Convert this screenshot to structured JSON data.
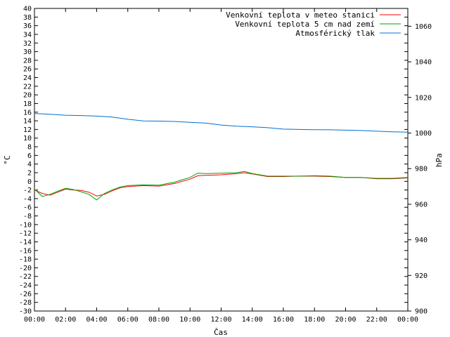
{
  "chart_data": {
    "type": "line",
    "xlabel": "Čas",
    "ylabel": "°C",
    "y2label": "hPa",
    "x_ticks": [
      "00:00",
      "02:00",
      "04:00",
      "06:00",
      "08:00",
      "10:00",
      "12:00",
      "14:00",
      "16:00",
      "18:00",
      "20:00",
      "22:00",
      "00:00"
    ],
    "xlim": [
      0,
      24
    ],
    "ylim": [
      -30,
      40
    ],
    "ytick_step": 2,
    "y2lim": [
      900,
      1070
    ],
    "y2tick_step": 20,
    "grid": false,
    "legend_position": "top-right",
    "series": [
      {
        "name": "Venkovní teplota v meteo stanici",
        "axis": "left",
        "color": "#ff0000",
        "x": [
          0,
          0.5,
          1,
          1.5,
          2,
          2.5,
          3,
          3.5,
          4,
          4.5,
          5,
          5.5,
          6,
          7,
          8,
          9,
          10,
          10.5,
          11,
          12,
          13,
          13.5,
          14,
          15,
          16,
          17,
          18,
          19,
          20,
          21,
          22,
          23,
          24
        ],
        "y": [
          -2.0,
          -2.8,
          -3.2,
          -2.5,
          -1.8,
          -2.0,
          -2.1,
          -2.5,
          -3.4,
          -3.0,
          -2.2,
          -1.5,
          -1.2,
          -1.0,
          -1.1,
          -0.5,
          0.5,
          1.3,
          1.4,
          1.5,
          1.8,
          2.0,
          1.7,
          1.1,
          1.1,
          1.2,
          1.2,
          1.1,
          0.9,
          0.9,
          0.6,
          0.6,
          0.8
        ]
      },
      {
        "name": "Venkovní teplota 5 cm nad zemí",
        "axis": "left",
        "color": "#00a000",
        "x": [
          0,
          0.5,
          1,
          1.5,
          2,
          2.5,
          3,
          3.5,
          4,
          4.5,
          5,
          5.5,
          6,
          7,
          8,
          9,
          10,
          10.5,
          11,
          12,
          13,
          13.5,
          14,
          15,
          16,
          17,
          18,
          19,
          20,
          21,
          22,
          23,
          24
        ],
        "y": [
          -1.8,
          -3.5,
          -3.0,
          -2.3,
          -1.6,
          -1.9,
          -2.4,
          -3.0,
          -4.3,
          -2.8,
          -2.0,
          -1.3,
          -1.0,
          -0.8,
          -0.9,
          -0.2,
          0.9,
          1.9,
          1.8,
          1.9,
          2.0,
          2.3,
          1.8,
          1.2,
          1.2,
          1.2,
          1.3,
          1.2,
          0.9,
          0.9,
          0.7,
          0.7,
          0.9
        ]
      },
      {
        "name": "Atmosférický tlak",
        "axis": "right",
        "color": "#0070d0",
        "x": [
          0,
          1,
          2,
          3,
          4,
          5,
          6,
          7,
          8,
          9,
          10,
          11,
          12,
          13,
          14,
          15,
          16,
          17,
          18,
          19,
          20,
          21,
          22,
          23,
          24
        ],
        "y": [
          1011,
          1010.5,
          1010,
          1009.8,
          1009.5,
          1009,
          1007.7,
          1006.8,
          1006.7,
          1006.5,
          1006,
          1005.6,
          1004.5,
          1003.8,
          1003.5,
          1003,
          1002.2,
          1002,
          1001.9,
          1001.8,
          1001.6,
          1001.4,
          1001,
          1000.7,
          1000.5
        ]
      }
    ]
  }
}
